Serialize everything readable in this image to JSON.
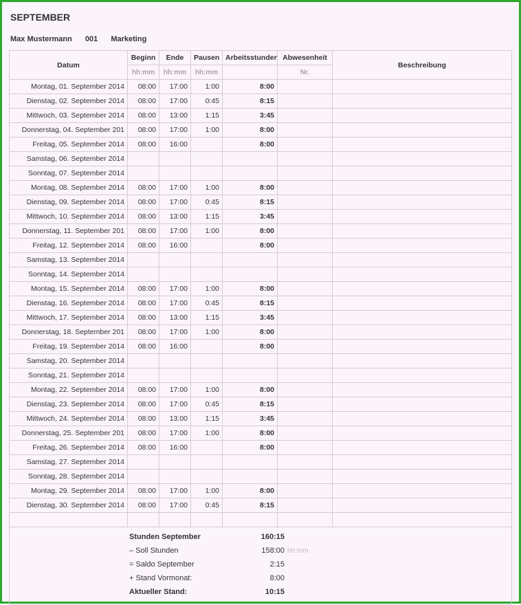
{
  "month_title": "SEPTEMBER",
  "employee": {
    "name": "Max Mustermann",
    "id": "001",
    "dept": "Marketing"
  },
  "headers": {
    "date": "Datum",
    "begin": "Beginn",
    "end": "Ende",
    "pause": "Pausen",
    "hours": "Arbeitsstunden",
    "absence": "Abwesenheit",
    "desc": "Beschreibung",
    "sub_hhmm": "hh:mm",
    "sub_nr": "Nr."
  },
  "rows": [
    {
      "date": "Montag, 01. September 2014",
      "begin": "08:00",
      "end": "17:00",
      "pause": "1:00",
      "hours": "8:00"
    },
    {
      "date": "Dienstag, 02. September 2014",
      "begin": "08:00",
      "end": "17:00",
      "pause": "0:45",
      "hours": "8:15"
    },
    {
      "date": "Mittwoch, 03. September 2014",
      "begin": "08:00",
      "end": "13:00",
      "pause": "1:15",
      "hours": "3:45"
    },
    {
      "date": "Donnerstag, 04. September 201",
      "begin": "08:00",
      "end": "17:00",
      "pause": "1:00",
      "hours": "8:00"
    },
    {
      "date": "Freitag, 05. September 2014",
      "begin": "08:00",
      "end": "16:00",
      "pause": "",
      "hours": "8:00"
    },
    {
      "date": "Samstag, 06. September 2014",
      "begin": "",
      "end": "",
      "pause": "",
      "hours": ""
    },
    {
      "date": "Sonntag, 07. September 2014",
      "begin": "",
      "end": "",
      "pause": "",
      "hours": ""
    },
    {
      "date": "Montag, 08. September 2014",
      "begin": "08:00",
      "end": "17:00",
      "pause": "1:00",
      "hours": "8:00"
    },
    {
      "date": "Dienstag, 09. September 2014",
      "begin": "08:00",
      "end": "17:00",
      "pause": "0:45",
      "hours": "8:15"
    },
    {
      "date": "Mittwoch, 10. September 2014",
      "begin": "08:00",
      "end": "13:00",
      "pause": "1:15",
      "hours": "3:45"
    },
    {
      "date": "Donnerstag, 11. September 201",
      "begin": "08:00",
      "end": "17:00",
      "pause": "1:00",
      "hours": "8:00"
    },
    {
      "date": "Freitag, 12. September 2014",
      "begin": "08:00",
      "end": "16:00",
      "pause": "",
      "hours": "8:00"
    },
    {
      "date": "Samstag, 13. September 2014",
      "begin": "",
      "end": "",
      "pause": "",
      "hours": ""
    },
    {
      "date": "Sonntag, 14. September 2014",
      "begin": "",
      "end": "",
      "pause": "",
      "hours": ""
    },
    {
      "date": "Montag, 15. September 2014",
      "begin": "08:00",
      "end": "17:00",
      "pause": "1:00",
      "hours": "8:00"
    },
    {
      "date": "Dienstag, 16. September 2014",
      "begin": "08:00",
      "end": "17:00",
      "pause": "0:45",
      "hours": "8:15"
    },
    {
      "date": "Mittwoch, 17. September 2014",
      "begin": "08:00",
      "end": "13:00",
      "pause": "1:15",
      "hours": "3:45"
    },
    {
      "date": "Donnerstag, 18. September 201",
      "begin": "08:00",
      "end": "17:00",
      "pause": "1:00",
      "hours": "8:00"
    },
    {
      "date": "Freitag, 19. September 2014",
      "begin": "08:00",
      "end": "16:00",
      "pause": "",
      "hours": "8:00"
    },
    {
      "date": "Samstag, 20. September 2014",
      "begin": "",
      "end": "",
      "pause": "",
      "hours": ""
    },
    {
      "date": "Sonntag, 21. September 2014",
      "begin": "",
      "end": "",
      "pause": "",
      "hours": ""
    },
    {
      "date": "Montag, 22. September 2014",
      "begin": "08:00",
      "end": "17:00",
      "pause": "1:00",
      "hours": "8:00"
    },
    {
      "date": "Dienstag, 23. September 2014",
      "begin": "08:00",
      "end": "17:00",
      "pause": "0:45",
      "hours": "8:15"
    },
    {
      "date": "Mittwoch, 24. September 2014",
      "begin": "08:00",
      "end": "13:00",
      "pause": "1:15",
      "hours": "3:45"
    },
    {
      "date": "Donnerstag, 25. September 201",
      "begin": "08:00",
      "end": "17:00",
      "pause": "1:00",
      "hours": "8:00"
    },
    {
      "date": "Freitag, 26. September 2014",
      "begin": "08:00",
      "end": "16:00",
      "pause": "",
      "hours": "8:00"
    },
    {
      "date": "Samstag, 27. September 2014",
      "begin": "",
      "end": "",
      "pause": "",
      "hours": ""
    },
    {
      "date": "Sonntag, 28. September 2014",
      "begin": "",
      "end": "",
      "pause": "",
      "hours": ""
    },
    {
      "date": "Montag, 29. September 2014",
      "begin": "08:00",
      "end": "17:00",
      "pause": "1:00",
      "hours": "8:00"
    },
    {
      "date": "Dienstag, 30. September 2014",
      "begin": "08:00",
      "end": "17:00",
      "pause": "0:45",
      "hours": "8:15"
    },
    {
      "date": "",
      "begin": "",
      "end": "",
      "pause": "",
      "hours": ""
    }
  ],
  "summary": [
    {
      "label": "Stunden September",
      "value": "160:15",
      "bold_label": true,
      "unit": ""
    },
    {
      "label": "– Soll Stunden",
      "value": "158:00",
      "bold_label": false,
      "unit": "hh:mm"
    },
    {
      "label": "= Saldo September",
      "value": "2:15",
      "bold_label": false,
      "unit": ""
    },
    {
      "label": "+ Stand Vormonat:",
      "value": "8:00",
      "bold_label": false,
      "unit": ""
    },
    {
      "label": "Aktueller Stand:",
      "value": "10:15",
      "bold_label": true,
      "unit": ""
    }
  ]
}
